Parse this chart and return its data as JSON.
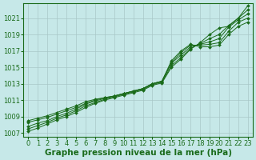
{
  "title": "Graphe pression niveau de la mer (hPa)",
  "xlabel": "Graphe pression niveau de la mer (hPa)",
  "x_hours": [
    0,
    1,
    2,
    3,
    4,
    5,
    6,
    7,
    8,
    9,
    10,
    11,
    12,
    13,
    14,
    15,
    16,
    17,
    18,
    19,
    20,
    21,
    22,
    23
  ],
  "series": [
    [
      1007.2,
      1007.6,
      1008.1,
      1008.6,
      1009.0,
      1009.5,
      1010.1,
      1010.6,
      1011.0,
      1011.3,
      1011.6,
      1011.9,
      1012.2,
      1012.8,
      1013.1,
      1015.0,
      1016.0,
      1017.2,
      1018.0,
      1019.0,
      1019.8,
      1020.0,
      1021.0,
      1022.5
    ],
    [
      1007.5,
      1007.9,
      1008.3,
      1008.8,
      1009.2,
      1009.7,
      1010.3,
      1010.7,
      1011.1,
      1011.4,
      1011.7,
      1012.0,
      1012.3,
      1012.9,
      1013.2,
      1015.2,
      1016.2,
      1017.3,
      1017.9,
      1018.5,
      1019.0,
      1020.1,
      1021.0,
      1022.0
    ],
    [
      1007.8,
      1008.2,
      1008.5,
      1009.0,
      1009.4,
      1009.9,
      1010.5,
      1010.9,
      1011.2,
      1011.5,
      1011.8,
      1012.1,
      1012.4,
      1013.0,
      1013.3,
      1015.5,
      1016.5,
      1017.5,
      1017.8,
      1018.1,
      1018.5,
      1019.9,
      1020.8,
      1021.5
    ],
    [
      1008.3,
      1008.6,
      1008.9,
      1009.3,
      1009.7,
      1010.1,
      1010.6,
      1011.0,
      1011.3,
      1011.5,
      1011.8,
      1012.1,
      1012.4,
      1013.0,
      1013.3,
      1015.6,
      1016.8,
      1017.7,
      1017.7,
      1017.8,
      1018.0,
      1019.4,
      1020.5,
      1021.0
    ],
    [
      1008.5,
      1008.8,
      1009.1,
      1009.5,
      1009.9,
      1010.3,
      1010.8,
      1011.1,
      1011.3,
      1011.5,
      1011.8,
      1012.1,
      1012.4,
      1013.0,
      1013.3,
      1015.8,
      1017.0,
      1017.8,
      1017.5,
      1017.5,
      1017.7,
      1019.0,
      1020.0,
      1020.5
    ]
  ],
  "line_color": "#1a6b1a",
  "marker": "D",
  "marker_size": 2,
  "linewidth": 0.7,
  "ylim": [
    1006.5,
    1022.8
  ],
  "yticks": [
    1007,
    1009,
    1011,
    1013,
    1015,
    1017,
    1019,
    1021
  ],
  "xlim": [
    -0.5,
    23.5
  ],
  "xticks": [
    0,
    1,
    2,
    3,
    4,
    5,
    6,
    7,
    8,
    9,
    10,
    11,
    12,
    13,
    14,
    15,
    16,
    17,
    18,
    19,
    20,
    21,
    22,
    23
  ],
  "bg_color": "#c6e8e8",
  "grid_color": "#a8c8c8",
  "title_fontsize": 7.5,
  "tick_fontsize": 6
}
